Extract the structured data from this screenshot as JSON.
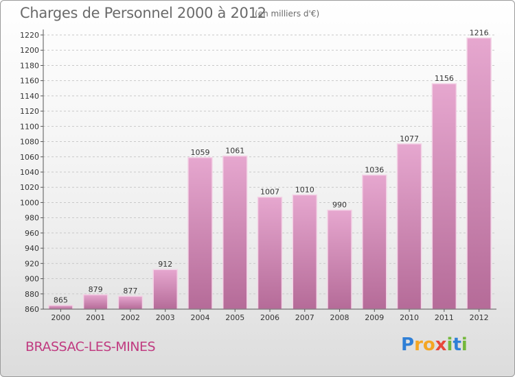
{
  "header": {
    "title": "Charges de Personnel 2000 à 2012",
    "subtitle": "(en milliers d'€)"
  },
  "footer": {
    "commune": "BRASSAC-LES-MINES",
    "logo_text": "Proxiti"
  },
  "chart_data": {
    "type": "bar",
    "title": "Charges de Personnel 2000 à 2012",
    "subtitle": "(en milliers d'€)",
    "xlabel": "",
    "ylabel": "",
    "categories": [
      "2000",
      "2001",
      "2002",
      "2003",
      "2004",
      "2005",
      "2006",
      "2007",
      "2008",
      "2009",
      "2010",
      "2011",
      "2012"
    ],
    "values": [
      865,
      879,
      877,
      912,
      1059,
      1061,
      1007,
      1010,
      990,
      1036,
      1077,
      1156,
      1216
    ],
    "data_labels": [
      "865",
      "879",
      "877",
      "912",
      "1059",
      "1061",
      "1007",
      "1010",
      "990",
      "1036",
      "1077",
      "1156",
      "1216"
    ],
    "ylim": [
      860,
      1220
    ],
    "yticks": [
      860,
      880,
      900,
      920,
      940,
      960,
      980,
      1000,
      1020,
      1040,
      1060,
      1080,
      1100,
      1120,
      1140,
      1160,
      1180,
      1200,
      1220
    ],
    "grid": true,
    "legend": "none",
    "colors": {
      "bar_top": "#e6a7cf",
      "bar_bottom": "#b56b98",
      "bar_edge": "#f3d3e6",
      "grid": "#c8c8c8",
      "axis": "#555555"
    }
  }
}
